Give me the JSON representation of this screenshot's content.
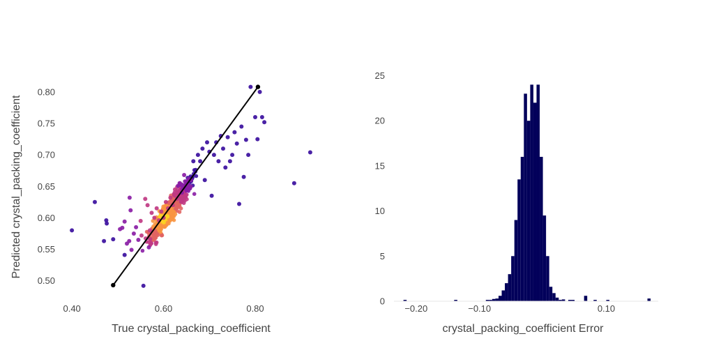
{
  "chart_data": [
    {
      "type": "scatter",
      "xlabel": "True crystal_packing_coefficient",
      "ylabel": "Predicted crystal_packing_coefficient",
      "xlim": [
        0.38,
        0.94
      ],
      "ylim": [
        0.483,
        0.822
      ],
      "x_ticks": [
        0.4,
        0.6,
        0.8
      ],
      "x_tick_labels": [
        "0.40",
        "0.60",
        "0.80"
      ],
      "y_ticks": [
        0.5,
        0.55,
        0.6,
        0.65,
        0.7,
        0.75,
        0.8
      ],
      "y_tick_labels": [
        "0.50",
        "0.55",
        "0.60",
        "0.65",
        "0.70",
        "0.75",
        "0.80"
      ],
      "grid": false,
      "legend": "none",
      "point_colorscale": [
        "#3b0f9e",
        "#8a1da5",
        "#c03a83",
        "#e16462",
        "#f89540",
        "#fcd225"
      ],
      "points_sample": [
        [
          0.4,
          0.58
        ],
        [
          0.45,
          0.625
        ],
        [
          0.47,
          0.563
        ],
        [
          0.475,
          0.596
        ],
        [
          0.476,
          0.591
        ],
        [
          0.49,
          0.566
        ],
        [
          0.505,
          0.582
        ],
        [
          0.51,
          0.584
        ],
        [
          0.515,
          0.594
        ],
        [
          0.515,
          0.541
        ],
        [
          0.52,
          0.559
        ],
        [
          0.525,
          0.563
        ],
        [
          0.526,
          0.632
        ],
        [
          0.528,
          0.612
        ],
        [
          0.53,
          0.549
        ],
        [
          0.535,
          0.575
        ],
        [
          0.54,
          0.585
        ],
        [
          0.545,
          0.565
        ],
        [
          0.55,
          0.595
        ],
        [
          0.552,
          0.572
        ],
        [
          0.556,
          0.492
        ],
        [
          0.56,
          0.63
        ],
        [
          0.565,
          0.62
        ],
        [
          0.568,
          0.553
        ],
        [
          0.57,
          0.58
        ],
        [
          0.574,
          0.608
        ],
        [
          0.58,
          0.6
        ],
        [
          0.585,
          0.615
        ],
        [
          0.59,
          0.596
        ],
        [
          0.595,
          0.61
        ],
        [
          0.6,
          0.6
        ],
        [
          0.605,
          0.625
        ],
        [
          0.61,
          0.615
        ],
        [
          0.615,
          0.632
        ],
        [
          0.62,
          0.62
        ],
        [
          0.625,
          0.645
        ],
        [
          0.63,
          0.63
        ],
        [
          0.635,
          0.655
        ],
        [
          0.64,
          0.64
        ],
        [
          0.645,
          0.668
        ],
        [
          0.65,
          0.65
        ],
        [
          0.655,
          0.662
        ],
        [
          0.66,
          0.66
        ],
        [
          0.665,
          0.69
        ],
        [
          0.67,
          0.676
        ],
        [
          0.675,
          0.7
        ],
        [
          0.68,
          0.69
        ],
        [
          0.685,
          0.71
        ],
        [
          0.69,
          0.66
        ],
        [
          0.695,
          0.72
        ],
        [
          0.7,
          0.705
        ],
        [
          0.705,
          0.635
        ],
        [
          0.71,
          0.7
        ],
        [
          0.715,
          0.72
        ],
        [
          0.72,
          0.69
        ],
        [
          0.725,
          0.73
        ],
        [
          0.73,
          0.71
        ],
        [
          0.735,
          0.68
        ],
        [
          0.74,
          0.728
        ],
        [
          0.745,
          0.69
        ],
        [
          0.75,
          0.7
        ],
        [
          0.755,
          0.736
        ],
        [
          0.76,
          0.718
        ],
        [
          0.765,
          0.622
        ],
        [
          0.77,
          0.745
        ],
        [
          0.775,
          0.665
        ],
        [
          0.78,
          0.724
        ],
        [
          0.785,
          0.7
        ],
        [
          0.79,
          0.808
        ],
        [
          0.8,
          0.76
        ],
        [
          0.805,
          0.725
        ],
        [
          0.81,
          0.8
        ],
        [
          0.815,
          0.76
        ],
        [
          0.82,
          0.752
        ],
        [
          0.885,
          0.655
        ],
        [
          0.92,
          0.704
        ]
      ],
      "reference_line": {
        "x": [
          0.49,
          0.806
        ],
        "y": [
          0.493,
          0.808
        ],
        "color": "#000000"
      }
    },
    {
      "type": "bar",
      "xlabel": "crystal_packing_coefficient Error",
      "ylabel": "",
      "xlim": [
        -0.235,
        0.182
      ],
      "ylim": [
        0,
        25.5
      ],
      "x_ticks": [
        -0.2,
        -0.1,
        0.1
      ],
      "x_tick_labels": [
        "−0.20",
        "−0.10",
        "0.10"
      ],
      "y_ticks": [
        0,
        5,
        10,
        15,
        20,
        25
      ],
      "y_tick_labels": [
        "0",
        "5",
        "10",
        "15",
        "20",
        "25"
      ],
      "grid": false,
      "legend": "none",
      "bar_color": "#02005a",
      "bin_width": 0.005,
      "bins_start": [
        -0.22,
        -0.14,
        -0.09,
        -0.085,
        -0.08,
        -0.075,
        -0.07,
        -0.065,
        -0.06,
        -0.055,
        -0.05,
        -0.045,
        -0.04,
        -0.035,
        -0.03,
        -0.025,
        -0.02,
        -0.015,
        -0.01,
        -0.005,
        0.0,
        0.005,
        0.01,
        0.015,
        0.02,
        0.025,
        0.03,
        0.04,
        0.045,
        0.065,
        0.08,
        0.1,
        0.165
      ],
      "counts": [
        0.15,
        0.15,
        0.15,
        0.15,
        0.25,
        0.3,
        0.6,
        1.2,
        2.0,
        3.0,
        5.0,
        9.0,
        13.5,
        16.0,
        23.0,
        20.0,
        24.0,
        22.0,
        24.0,
        16.0,
        9.5,
        5.0,
        1.6,
        0.9,
        0.4,
        0.15,
        0.2,
        0.15,
        0.15,
        0.6,
        0.15,
        0.15,
        0.3
      ]
    }
  ]
}
